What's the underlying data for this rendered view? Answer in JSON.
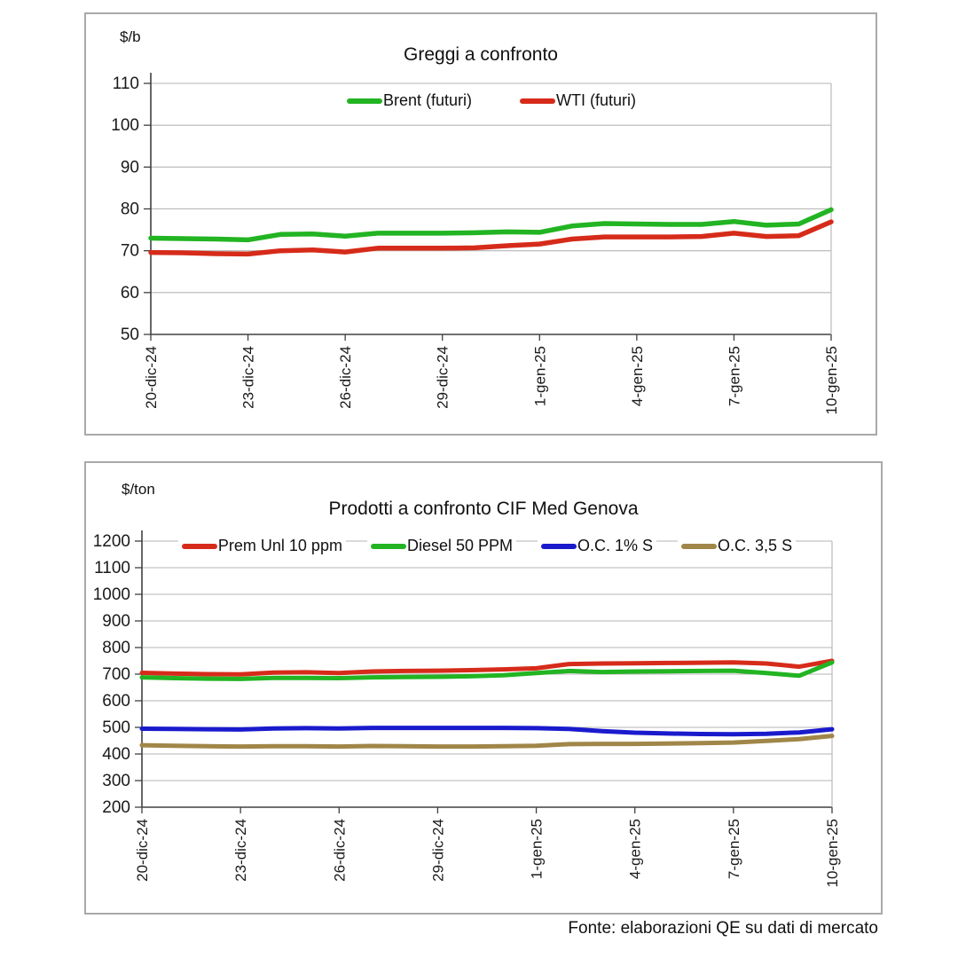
{
  "page": {
    "footer": "Fonte: elaborazioni QE su dati di mercato",
    "background_color": "#ffffff",
    "grid_color": "#b5b5b5",
    "axis_color": "#404040",
    "frame_color": "#a9a9a9"
  },
  "chart_data": [
    {
      "type": "line",
      "title": "Greggi a confronto",
      "unit_label": "$/b",
      "ylim": [
        50,
        110
      ],
      "ytick_step": 10,
      "grid": true,
      "legend_position": "top-center",
      "categories": [
        "20-dic-24",
        "23-dic-24",
        "26-dic-24",
        "29-dic-24",
        "1-gen-25",
        "4-gen-25",
        "7-gen-25",
        "10-gen-25"
      ],
      "points_per_tick": 3,
      "line_width": 5.5,
      "series": [
        {
          "name": "Brent (futuri)",
          "color": "#22b422",
          "values": [
            73.0,
            72.9,
            72.8,
            72.6,
            73.9,
            74.0,
            73.5,
            74.2,
            74.2,
            74.2,
            74.3,
            74.5,
            74.4,
            75.9,
            76.5,
            76.4,
            76.3,
            76.3,
            77.0,
            76.1,
            76.4,
            79.8
          ]
        },
        {
          "name": "WTI (futuri)",
          "color": "#d62b1a",
          "values": [
            69.6,
            69.5,
            69.3,
            69.2,
            70.0,
            70.2,
            69.7,
            70.6,
            70.6,
            70.6,
            70.7,
            71.2,
            71.6,
            72.8,
            73.3,
            73.3,
            73.3,
            73.4,
            74.2,
            73.4,
            73.6,
            76.9
          ]
        }
      ]
    },
    {
      "type": "line",
      "title": "Prodotti a confronto CIF Med Genova",
      "unit_label": "$/ton",
      "ylim": [
        200,
        1200
      ],
      "ytick_step": 100,
      "grid": true,
      "legend_position": "top-center",
      "categories": [
        "20-dic-24",
        "23-dic-24",
        "26-dic-24",
        "29-dic-24",
        "1-gen-25",
        "4-gen-25",
        "7-gen-25",
        "10-gen-25"
      ],
      "points_per_tick": 3,
      "line_width": 5,
      "series": [
        {
          "name": "Prem Unl 10 ppm",
          "color": "#d62b1a",
          "values": [
            705,
            702,
            700,
            699,
            706,
            707,
            704,
            710,
            712,
            713,
            715,
            718,
            722,
            738,
            740,
            741,
            742,
            743,
            744,
            740,
            728,
            750
          ]
        },
        {
          "name": "Diesel 50 PPM",
          "color": "#22b422",
          "values": [
            688,
            685,
            683,
            682,
            686,
            686,
            685,
            688,
            689,
            690,
            692,
            696,
            704,
            712,
            708,
            710,
            711,
            712,
            713,
            704,
            694,
            744
          ]
        },
        {
          "name": "O.C. 1% S",
          "color": "#1a1acd",
          "values": [
            495,
            494,
            493,
            492,
            496,
            497,
            496,
            498,
            498,
            498,
            498,
            498,
            497,
            494,
            486,
            480,
            477,
            475,
            474,
            476,
            481,
            493
          ]
        },
        {
          "name": "O.C. 3,5 S",
          "color": "#a08648",
          "values": [
            433,
            431,
            429,
            428,
            429,
            429,
            428,
            430,
            429,
            428,
            428,
            429,
            431,
            437,
            438,
            438,
            439,
            441,
            443,
            449,
            456,
            468
          ]
        }
      ]
    }
  ]
}
